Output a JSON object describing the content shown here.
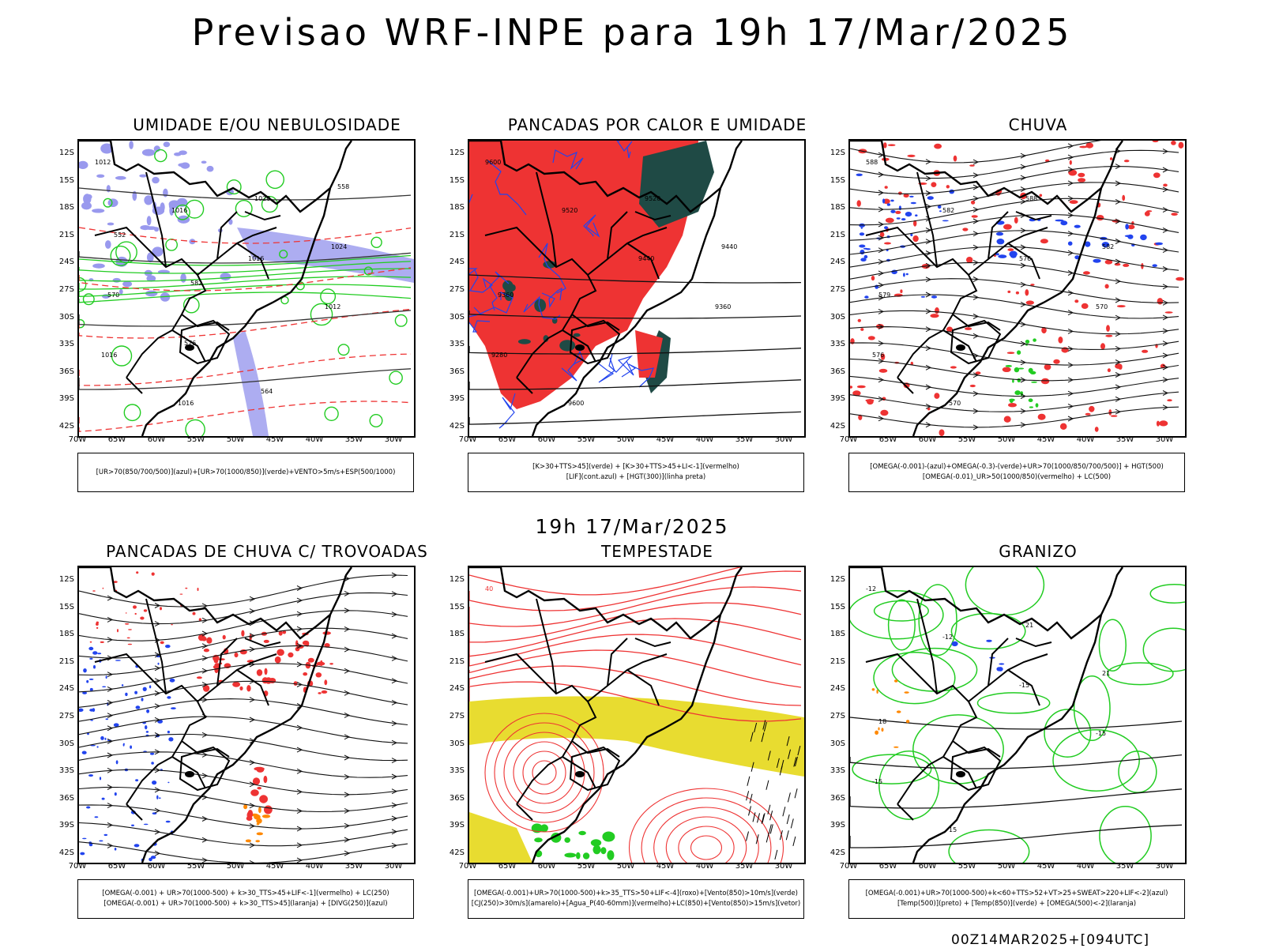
{
  "title": "Previsao WRF-INPE  para 19h 17/Mar/2025",
  "mid_title": "19h 17/Mar/2025",
  "footer": "00Z14MAR2025+[094UTC]",
  "axes": {
    "lat_labels": [
      "12S",
      "15S",
      "18S",
      "21S",
      "24S",
      "27S",
      "30S",
      "33S",
      "36S",
      "39S",
      "42S"
    ],
    "lon_labels": [
      "70W",
      "65W",
      "60W",
      "55W",
      "50W",
      "45W",
      "40W",
      "35W",
      "30W"
    ]
  },
  "panels": [
    {
      "title": "UMIDADE E/OU NEBULOSIDADE",
      "legend_lines": [
        "[UR>70(850/700/500)](azul)+[UR>70(1000/850)](verde)+VENTO>5m/s+ESP(500/1000)"
      ],
      "contour_labels": [
        "1012",
        "1016",
        "1016",
        "1012",
        "1016",
        "1016",
        "1020",
        "1024",
        "570",
        "576",
        "564",
        "558",
        "552",
        "582"
      ]
    },
    {
      "title": "PANCADAS POR CALOR E UMIDADE",
      "legend_lines": [
        "[K>30+TTS>45](verde) + [K>30+TTS>45+LI<-1](vermelho)",
        "[LIF](cont.azul) + [HGT(300)](linha preta)"
      ],
      "contour_labels": [
        "9600",
        "9520",
        "9440",
        "9360",
        "9280",
        "9600",
        "9520",
        "9440",
        "9360"
      ]
    },
    {
      "title": "CHUVA",
      "legend_lines": [
        "[OMEGA(-0.001)-(azul)+OMEGA(-0.3)-(verde)+UR>70(1000/850/700/500)] + HGT(500)",
        "[OMEGA(-0.01)_UR>50(1000/850)(vermelho) + LC(500)"
      ],
      "contour_labels": [
        "588",
        "582",
        "576",
        "570",
        "576",
        "570",
        "588",
        "582",
        "579"
      ]
    },
    {
      "title": "PANCADAS DE CHUVA C/ TROVOADAS",
      "legend_lines": [
        "[OMEGA(-0.001) + UR>70(1000-500) + k>30_TTS>45+LIF<-1](vermelho) + LC(250)",
        "[OMEGA(-0.001) + UR>70(1000-500) + k>30_TTS>45](laranja) + [DIVG(250)](azul)"
      ],
      "contour_labels": []
    },
    {
      "title": "TEMPESTADE",
      "legend_lines": [
        "[OMEGA(-0.001)+UR>70(1000-500)+k>35_TTS>50+LIF<-4](roxo)+[Vento(850)>10m/s](verde)",
        "[CJ(250)>30m/s](amarelo)+[Agua_P(40-60mm)](vermelho)+LC(850)+[Vento(850)>15m/s](vetor)"
      ],
      "contour_labels": [
        "40"
      ]
    },
    {
      "title": "GRANIZO",
      "legend_lines": [
        "[OMEGA(-0.001)+UR>70(1000-500)+k<60+TTS>52+VT>25+SWEAT>220+LIF<-2](azul)",
        "[Temp(500)](preto) + [Temp(850)](verde) + [OMEGA(500)<-2](laranja)"
      ],
      "contour_labels": [
        "-12",
        "-12",
        "-15",
        "-15",
        "-15",
        "15",
        "21",
        "21",
        "18"
      ]
    }
  ],
  "colors": {
    "coast": "#000000",
    "green": "#22cc22",
    "red": "#ee3333",
    "blue": "#2244ee",
    "lightblue": "#9999ee",
    "darkteal": "#1f4a45",
    "yellow": "#e8dc30",
    "orange": "#ff8800",
    "purple": "#cc22cc"
  }
}
